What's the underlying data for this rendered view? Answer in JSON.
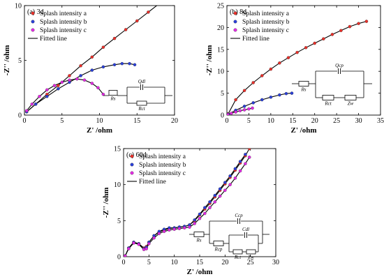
{
  "chart_data": [
    {
      "type": "scatter",
      "panel_label": "(a) 3d",
      "xlabel": "Z' /ohm",
      "ylabel": "-Z'' /ohm",
      "xlim": [
        0,
        20
      ],
      "ylim": [
        0,
        10
      ],
      "xticks": [
        "0",
        "5",
        "10",
        "15",
        "20"
      ],
      "yticks": [
        "0",
        "5",
        "10"
      ],
      "legend_position": "top-left",
      "series": [
        {
          "name": "Splash intensity a",
          "color": "#e8302a",
          "marker": "circle",
          "x": [
            0.3,
            1.5,
            3.0,
            4.5,
            6.0,
            7.5,
            9.0,
            10.5,
            12.0,
            13.5,
            15.0,
            16.5,
            18.0
          ],
          "y": [
            0.3,
            1.0,
            1.9,
            2.7,
            3.6,
            4.5,
            5.3,
            6.2,
            7.0,
            7.8,
            8.6,
            9.4,
            10.2
          ]
        },
        {
          "name": "Splash intensity b",
          "color": "#2a3fd6",
          "marker": "circle",
          "x": [
            0.3,
            1.5,
            3.0,
            4.5,
            6.0,
            7.5,
            9.0,
            10.5,
            12.0,
            13.0,
            14.0,
            14.7
          ],
          "y": [
            0.3,
            1.0,
            1.7,
            2.4,
            3.0,
            3.6,
            4.1,
            4.4,
            4.6,
            4.7,
            4.7,
            4.6
          ]
        },
        {
          "name": "Splash intensity c",
          "color": "#e02be0",
          "marker": "circle",
          "x": [
            0.3,
            1.0,
            2.0,
            3.0,
            4.0,
            5.0,
            6.0,
            7.0,
            8.0,
            9.0,
            9.8,
            10.5
          ],
          "y": [
            0.4,
            1.0,
            1.7,
            2.3,
            2.7,
            3.0,
            3.2,
            3.3,
            3.2,
            2.9,
            2.5,
            1.9
          ]
        }
      ],
      "fitted_line_label": "Fitted line",
      "circuit": {
        "r1": "Rs",
        "r2": "Rct",
        "q": "Qdl"
      }
    },
    {
      "type": "scatter",
      "panel_label": "(b) 8d",
      "xlabel": "Z' /ohm",
      "ylabel": "-Z'' /ohm",
      "xlim": [
        0,
        35
      ],
      "ylim": [
        0,
        25
      ],
      "xticks": [
        "0",
        "5",
        "10",
        "15",
        "20",
        "25",
        "30",
        "35"
      ],
      "yticks": [
        "0",
        "5",
        "10",
        "15",
        "20",
        "25"
      ],
      "legend_position": "top-left",
      "series": [
        {
          "name": "Splash intensity a",
          "color": "#e8302a",
          "marker": "circle",
          "x": [
            0.3,
            2.0,
            4.0,
            6.0,
            8.0,
            10.0,
            12.0,
            14.0,
            16.0,
            18.0,
            20.0,
            22.0,
            24.0,
            26.0,
            28.0,
            30.0,
            31.8
          ],
          "y": [
            0.3,
            3.5,
            5.6,
            7.4,
            9.0,
            10.5,
            11.9,
            13.1,
            14.3,
            15.4,
            16.4,
            17.4,
            18.4,
            19.3,
            20.2,
            20.9,
            21.4
          ]
        },
        {
          "name": "Splash intensity b",
          "color": "#2a3fd6",
          "marker": "circle",
          "x": [
            0.3,
            2.0,
            4.0,
            6.0,
            8.0,
            10.0,
            12.0,
            13.5,
            14.8
          ],
          "y": [
            0.2,
            1.1,
            2.0,
            2.8,
            3.5,
            4.1,
            4.6,
            4.9,
            5.0
          ]
        },
        {
          "name": "Splash intensity c",
          "color": "#e02be0",
          "marker": "circle",
          "x": [
            0.2,
            1.0,
            2.0,
            3.0,
            4.0,
            5.0,
            5.8
          ],
          "y": [
            0.1,
            0.4,
            0.7,
            1.0,
            1.2,
            1.4,
            1.6
          ]
        }
      ],
      "fitted_line_label": "Fitted line",
      "circuit": {
        "r1": "Rs",
        "r2": "Rct",
        "w": "Zw",
        "q": "Qcp"
      }
    },
    {
      "type": "scatter",
      "panel_label": "(c) 60d",
      "xlabel": "Z' /ohm",
      "ylabel": "-Z'' /ohm",
      "xlim": [
        0,
        30
      ],
      "ylim": [
        0,
        15
      ],
      "xticks": [
        "0",
        "5",
        "10",
        "15",
        "20",
        "25",
        "30"
      ],
      "yticks": [
        "0",
        "5",
        "10",
        "15"
      ],
      "legend_position": "top-left",
      "series": [
        {
          "name": "Splash intensity a",
          "color": "#e8302a",
          "marker": "circle",
          "x": [
            0.3,
            1.0,
            2.0,
            3.0,
            4.0,
            4.5,
            5.0,
            6.0,
            7.0,
            8.0,
            9.0,
            10.0,
            11.0,
            12.0,
            13.0,
            14.0,
            15.0,
            16.0,
            17.0,
            18.0,
            19.0,
            20.0,
            21.0,
            22.0,
            23.0,
            24.0,
            24.8
          ],
          "y": [
            0.1,
            1.2,
            2.0,
            1.8,
            1.2,
            1.4,
            2.0,
            2.9,
            3.4,
            3.7,
            3.9,
            4.0,
            4.1,
            4.2,
            4.4,
            5.0,
            5.8,
            6.6,
            7.4,
            8.3,
            9.2,
            10.1,
            11.0,
            12.0,
            13.0,
            14.0,
            15.0
          ]
        },
        {
          "name": "Splash intensity b",
          "color": "#2a3fd6",
          "marker": "circle",
          "x": [
            0.3,
            1.0,
            2.0,
            3.0,
            4.0,
            4.5,
            5.0,
            6.0,
            7.0,
            8.0,
            9.0,
            10.0,
            11.0,
            12.0,
            13.0,
            14.0,
            15.0,
            16.0,
            17.0,
            18.0,
            19.0,
            20.0,
            21.0,
            22.0,
            23.0,
            24.0
          ],
          "y": [
            0.1,
            1.2,
            2.0,
            1.8,
            1.1,
            1.3,
            2.0,
            2.9,
            3.5,
            3.8,
            4.0,
            4.0,
            4.1,
            4.2,
            4.4,
            5.1,
            5.9,
            6.8,
            7.6,
            8.5,
            9.4,
            10.3,
            11.2,
            12.2,
            13.2,
            14.2
          ]
        },
        {
          "name": "Splash intensity c",
          "color": "#e02be0",
          "marker": "circle",
          "x": [
            0.3,
            1.0,
            2.0,
            3.0,
            4.0,
            4.5,
            5.0,
            6.0,
            7.0,
            8.0,
            9.0,
            10.0,
            11.0,
            12.0,
            13.0,
            14.0,
            15.0,
            16.0,
            17.0,
            18.0,
            19.0,
            20.0,
            21.0,
            22.0,
            23.0,
            24.0,
            24.8
          ],
          "y": [
            0.1,
            1.1,
            1.9,
            1.7,
            1.0,
            1.1,
            1.8,
            2.6,
            3.2,
            3.5,
            3.7,
            3.8,
            3.9,
            4.0,
            4.1,
            4.6,
            5.3,
            6.0,
            6.8,
            7.6,
            8.4,
            9.2,
            10.0,
            10.9,
            11.9,
            12.9,
            13.8
          ]
        }
      ],
      "fitted_line_label": "Fitted line",
      "circuit": {
        "r1": "Rs",
        "r2": "Rcp",
        "r3": "Rct",
        "w": "Zw",
        "q1": "Ccp",
        "q2": "Cdl"
      }
    }
  ]
}
